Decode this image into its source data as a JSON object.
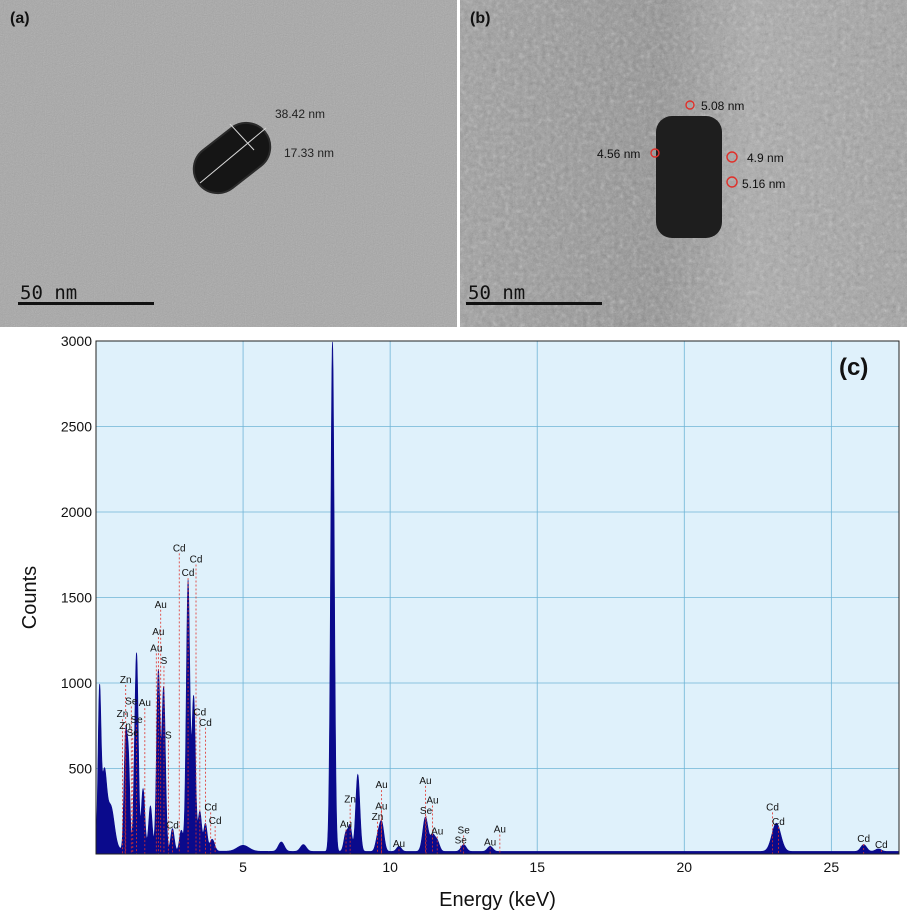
{
  "panels": {
    "a": {
      "label": "(a)",
      "scale": "50 nm",
      "measurements": [
        "38.42 nm",
        "17.33 nm"
      ]
    },
    "b": {
      "label": "(b)",
      "scale": "50 nm",
      "measurements": [
        "5.08 nm",
        "4.56 nm",
        "4.9 nm",
        "5.16 nm"
      ]
    }
  },
  "colors": {
    "plot_bg": "#dff1fb",
    "grid": "#6fb4d6",
    "spectrum": "#0a0a8c",
    "peak_line": "#e0302a"
  },
  "chart_data": {
    "type": "area",
    "title": "",
    "panel_label": "(c)",
    "xlabel": "Energy (keV)",
    "ylabel": "Counts",
    "xlim": [
      0,
      27.3
    ],
    "ylim": [
      0,
      3000
    ],
    "xticks": [
      5,
      10,
      15,
      20,
      25
    ],
    "yticks": [
      500,
      1000,
      1500,
      2000,
      2500,
      3000
    ],
    "grid": true,
    "baseline": 15,
    "peaks": [
      {
        "x": 0.12,
        "y": 900,
        "w": 0.05
      },
      {
        "x": 0.28,
        "y": 420,
        "w": 0.08
      },
      {
        "x": 0.5,
        "y": 250,
        "w": 0.12
      },
      {
        "x": 1.0,
        "y": 620,
        "w": 0.05
      },
      {
        "x": 1.1,
        "y": 520,
        "w": 0.05
      },
      {
        "x": 1.4,
        "y": 600,
        "w": 0.05
      },
      {
        "x": 1.6,
        "y": 360,
        "w": 0.06
      },
      {
        "x": 1.35,
        "y": 680,
        "w": 0.06
      },
      {
        "x": 1.85,
        "y": 260,
        "w": 0.06
      },
      {
        "x": 2.12,
        "y": 1050,
        "w": 0.06
      },
      {
        "x": 2.3,
        "y": 950,
        "w": 0.06
      },
      {
        "x": 2.6,
        "y": 130,
        "w": 0.06
      },
      {
        "x": 2.9,
        "y": 120,
        "w": 0.06
      },
      {
        "x": 3.13,
        "y": 1580,
        "w": 0.06
      },
      {
        "x": 3.32,
        "y": 900,
        "w": 0.06
      },
      {
        "x": 3.53,
        "y": 230,
        "w": 0.06
      },
      {
        "x": 3.72,
        "y": 160,
        "w": 0.06
      },
      {
        "x": 3.95,
        "y": 70,
        "w": 0.08
      },
      {
        "x": 5.0,
        "y": 35,
        "w": 0.2
      },
      {
        "x": 6.3,
        "y": 55,
        "w": 0.1
      },
      {
        "x": 7.05,
        "y": 40,
        "w": 0.1
      },
      {
        "x": 8.04,
        "y": 2980,
        "w": 0.06
      },
      {
        "x": 8.5,
        "y": 110,
        "w": 0.07
      },
      {
        "x": 8.64,
        "y": 140,
        "w": 0.06
      },
      {
        "x": 8.9,
        "y": 450,
        "w": 0.07
      },
      {
        "x": 9.57,
        "y": 70,
        "w": 0.07
      },
      {
        "x": 9.71,
        "y": 170,
        "w": 0.08
      },
      {
        "x": 10.3,
        "y": 30,
        "w": 0.08
      },
      {
        "x": 11.2,
        "y": 200,
        "w": 0.09
      },
      {
        "x": 11.44,
        "y": 90,
        "w": 0.08
      },
      {
        "x": 11.6,
        "y": 60,
        "w": 0.08
      },
      {
        "x": 12.5,
        "y": 40,
        "w": 0.09
      },
      {
        "x": 13.4,
        "y": 30,
        "w": 0.09
      },
      {
        "x": 23.13,
        "y": 165,
        "w": 0.15
      },
      {
        "x": 26.1,
        "y": 40,
        "w": 0.1
      },
      {
        "x": 26.6,
        "y": 15,
        "w": 0.1
      }
    ],
    "element_labels": [
      {
        "text": "Zn",
        "x": 1.01,
        "y": 1000
      },
      {
        "text": "Zn",
        "x": 0.9,
        "y": 800
      },
      {
        "text": "Zn",
        "x": 0.99,
        "y": 730
      },
      {
        "text": "Se",
        "x": 1.2,
        "y": 875
      },
      {
        "text": "Se",
        "x": 1.38,
        "y": 765
      },
      {
        "text": "Se",
        "x": 1.25,
        "y": 690
      },
      {
        "text": "Au",
        "x": 1.66,
        "y": 865
      },
      {
        "text": "Au",
        "x": 2.12,
        "y": 1280
      },
      {
        "text": "Au",
        "x": 2.05,
        "y": 1185
      },
      {
        "text": "S",
        "x": 2.31,
        "y": 1110
      },
      {
        "text": "S",
        "x": 2.46,
        "y": 675
      },
      {
        "text": "Au",
        "x": 2.2,
        "y": 1440
      },
      {
        "text": "Cd",
        "x": 2.6,
        "y": 150
      },
      {
        "text": "Cd",
        "x": 2.83,
        "y": 1770
      },
      {
        "text": "Cd",
        "x": 3.13,
        "y": 1625
      },
      {
        "text": "Cd",
        "x": 3.4,
        "y": 1705
      },
      {
        "text": "Cd",
        "x": 3.53,
        "y": 810
      },
      {
        "text": "Cd",
        "x": 3.72,
        "y": 750
      },
      {
        "text": "Cd",
        "x": 3.9,
        "y": 255
      },
      {
        "text": "Cd",
        "x": 4.05,
        "y": 175
      },
      {
        "text": "Zn",
        "x": 8.64,
        "y": 300
      },
      {
        "text": "Au",
        "x": 8.5,
        "y": 155
      },
      {
        "text": "Zn",
        "x": 9.57,
        "y": 200
      },
      {
        "text": "Au",
        "x": 9.71,
        "y": 385
      },
      {
        "text": "Au",
        "x": 9.7,
        "y": 260
      },
      {
        "text": "Au",
        "x": 10.3,
        "y": 40
      },
      {
        "text": "Au",
        "x": 11.2,
        "y": 410
      },
      {
        "text": "Se",
        "x": 11.22,
        "y": 235
      },
      {
        "text": "Au",
        "x": 11.44,
        "y": 295
      },
      {
        "text": "Au",
        "x": 11.6,
        "y": 115
      },
      {
        "text": "Se",
        "x": 12.5,
        "y": 120
      },
      {
        "text": "Se",
        "x": 12.4,
        "y": 60
      },
      {
        "text": "Au",
        "x": 13.4,
        "y": 50
      },
      {
        "text": "Au",
        "x": 13.73,
        "y": 125
      },
      {
        "text": "Cd",
        "x": 23.0,
        "y": 255
      },
      {
        "text": "Cd",
        "x": 23.2,
        "y": 170
      },
      {
        "text": "Cd",
        "x": 26.1,
        "y": 70
      },
      {
        "text": "Cd",
        "x": 26.7,
        "y": 35
      }
    ]
  }
}
